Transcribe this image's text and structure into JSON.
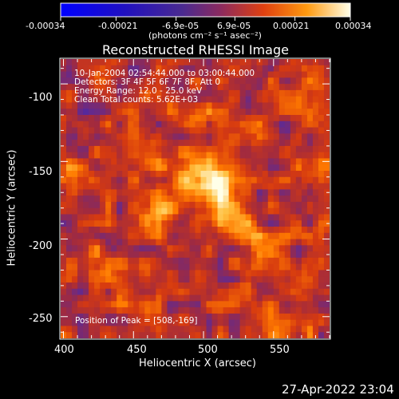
{
  "chart_data": {
    "type": "heatmap",
    "title": "Reconstructed RHESSI Image",
    "xlabel": "Heliocentric X (arcsec)",
    "ylabel": "Heliocentric Y (arcsec)",
    "xlim": [
      398,
      590
    ],
    "ylim": [
      -264,
      -84
    ],
    "x_ticks": [
      "400",
      "450",
      "500",
      "550"
    ],
    "x_tick_values": [
      400,
      450,
      500,
      550
    ],
    "y_ticks": [
      "-100",
      "-150",
      "-200",
      "-250"
    ],
    "y_tick_values": [
      -100,
      -150,
      -200,
      -250
    ],
    "grid": false,
    "colorbar": {
      "labels": [
        "-0.00034",
        "-0.00021",
        "-6.9e-05",
        "6.9e-05",
        "0.00021",
        "0.00034"
      ],
      "values": [
        -0.00034,
        -0.00021,
        -6.9e-05,
        6.9e-05,
        0.00021,
        0.00034
      ],
      "unit_label": "(photons cm⁻² s⁻¹ asec⁻²)",
      "range": [
        -0.00034,
        0.00034
      ]
    },
    "colormap": [
      "#0000ff",
      "#3a1aa0",
      "#5a2a9a",
      "#a02a40",
      "#d63a10",
      "#ff7a00",
      "#ffc040",
      "#ffffe8"
    ],
    "peak": [
      508,
      -169
    ],
    "sources": [
      {
        "x": 508,
        "y": -168,
        "value": 0.00034
      },
      {
        "x": 488,
        "y": -160,
        "value": 0.00022
      },
      {
        "x": 465,
        "y": -148,
        "value": 0.00018
      },
      {
        "x": 470,
        "y": -185,
        "value": 0.00016
      },
      {
        "x": 530,
        "y": -195,
        "value": 0.00016
      },
      {
        "x": 545,
        "y": -220,
        "value": 0.00015
      },
      {
        "x": 420,
        "y": -215,
        "value": 0.00014
      },
      {
        "x": 440,
        "y": -235,
        "value": 0.00012
      },
      {
        "x": 560,
        "y": -258,
        "value": 0.00014
      },
      {
        "x": 495,
        "y": -125,
        "value": 0.00013
      },
      {
        "x": 585,
        "y": -148,
        "value": 0.00012
      },
      {
        "x": 410,
        "y": -160,
        "value": 0.00011
      },
      {
        "x": 575,
        "y": -115,
        "value": 0.0001
      }
    ]
  },
  "info": {
    "line1": "10-Jan-2004 02:54:44.000 to 03:00:44.000",
    "line2": "Detectors: 3F 4F 5F 6F 7F 8F, Att 0",
    "line3": "Energy Range: 12.0 - 25.0 keV",
    "line4": "Clean     Total counts: 5.62E+03",
    "peak_label": "Position of Peak = [508,-169]"
  },
  "footer": {
    "timestamp": "27-Apr-2022 23:04"
  }
}
